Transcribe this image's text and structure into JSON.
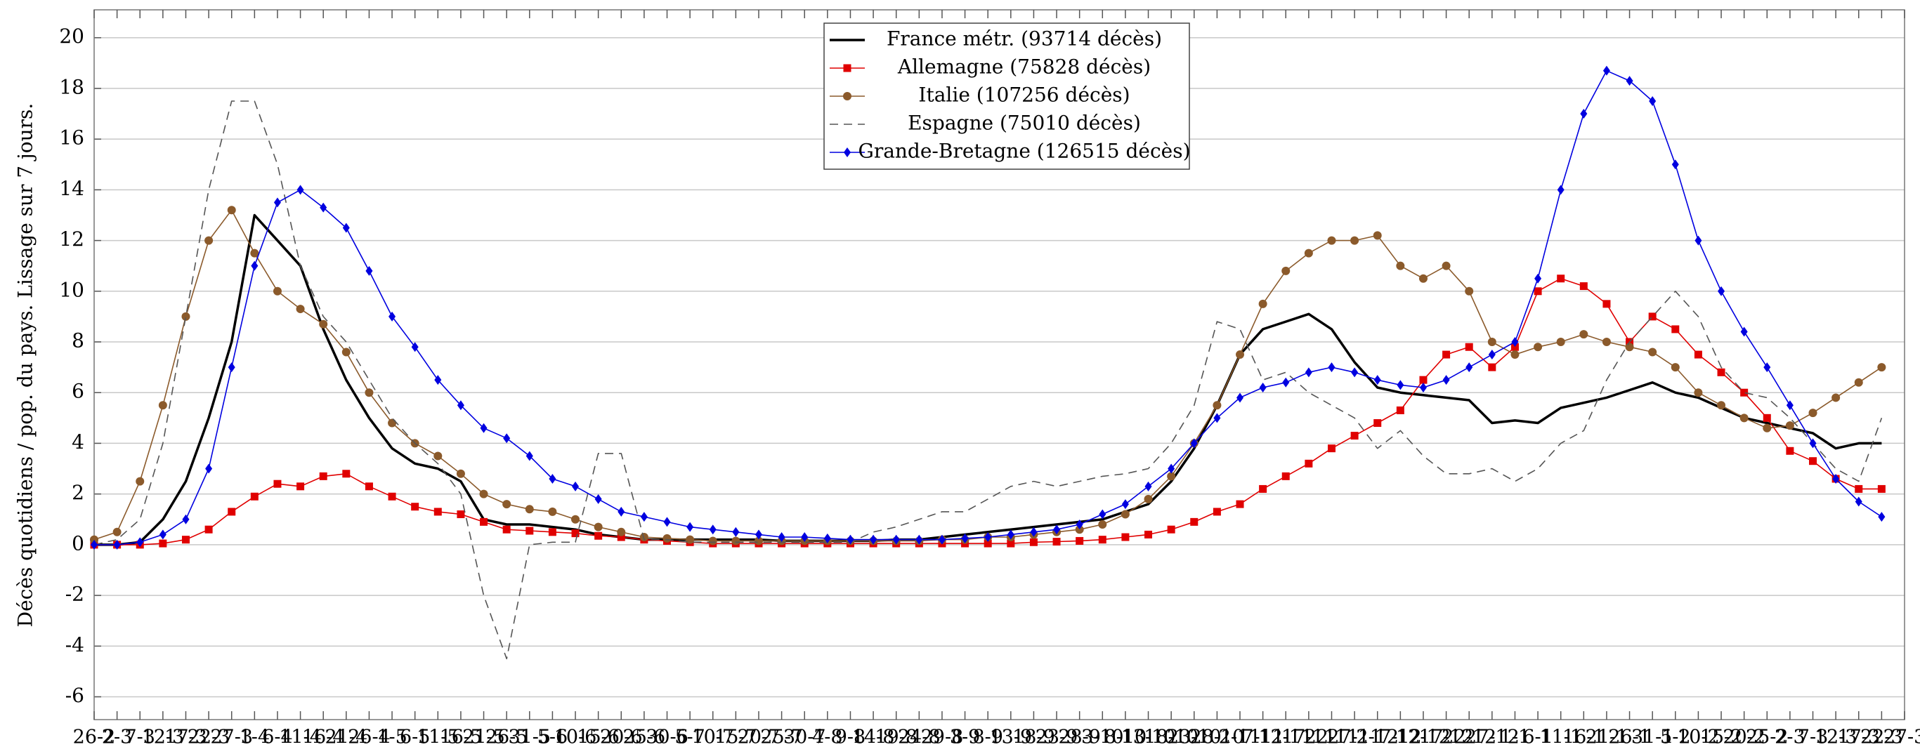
{
  "chart_data": {
    "type": "line",
    "y_label": "Décès quotidiens / pop. du pays. Lissage sur 7 jours.",
    "categories": [
      "26-2",
      "2-3",
      "7-3",
      "12-3",
      "17-3",
      "22-3",
      "27-3",
      "1-4",
      "6-4",
      "11-4",
      "16-4",
      "21-4",
      "26-4",
      "1-5",
      "6-5",
      "11-5",
      "16-5",
      "21-5",
      "26-5",
      "31-5",
      "5-6",
      "10-6",
      "15-6",
      "20-6",
      "25-6",
      "30-6",
      "5-7",
      "10-7",
      "15-7",
      "20-7",
      "25-7",
      "30-7",
      "4-8",
      "9-8",
      "14-8",
      "19-8",
      "24-8",
      "29-8",
      "3-9",
      "8-9",
      "13-9",
      "18-9",
      "23-9",
      "28-9",
      "3-10",
      "8-10",
      "13-10",
      "18-10",
      "23-10",
      "28-10",
      "2-11",
      "7-11",
      "12-11",
      "17-11",
      "22-11",
      "27-11",
      "2-12",
      "7-12",
      "12-12",
      "17-12",
      "22-12",
      "27-12",
      "1-1",
      "6-1",
      "11-1",
      "16-1",
      "21-1",
      "26-1",
      "31-1",
      "5-2",
      "10-2",
      "15-2",
      "20-2",
      "25-2",
      "2-3",
      "7-3",
      "12-3",
      "17-3",
      "22-3",
      "27-3"
    ],
    "ylim": [
      -6.9,
      21.1
    ],
    "yticks": [
      -6,
      -4,
      -2,
      0,
      2,
      4,
      6,
      8,
      10,
      12,
      14,
      16,
      18,
      20
    ],
    "grid": true,
    "legend": "top-center",
    "series": [
      {
        "name": "France métr. (93714 décès)",
        "color": "#000000",
        "marker": "none",
        "line_style": "solid",
        "values": [
          0,
          0,
          0.1,
          1.0,
          2.5,
          5,
          8,
          13,
          12,
          11,
          8.5,
          6.5,
          5,
          3.8,
          3.2,
          3,
          2.5,
          1.0,
          0.8,
          0.8,
          0.7,
          0.6,
          0.4,
          0.3,
          0.2,
          0.2,
          0.2,
          0.2,
          0.2,
          0.2,
          0.15,
          0.15,
          0.15,
          0.15,
          0.15,
          0.2,
          0.2,
          0.3,
          0.4,
          0.5,
          0.6,
          0.7,
          0.8,
          0.9,
          1.0,
          1.3,
          1.6,
          2.5,
          3.8,
          5.5,
          7.5,
          8.5,
          8.8,
          9.1,
          8.5,
          7.2,
          6.2,
          6.0,
          5.9,
          5.8,
          5.7,
          4.8,
          4.9,
          4.8,
          5.4,
          5.6,
          5.8,
          6.1,
          6.4,
          6.0,
          5.8,
          5.4,
          5.0,
          4.8,
          4.6,
          4.4,
          3.8,
          4.0,
          4.0,
          null
        ]
      },
      {
        "name": "Allemagne (75828 décès)",
        "color": "#e00000",
        "marker": "square",
        "line_style": "solid",
        "values": [
          0,
          0,
          0,
          0.05,
          0.2,
          0.6,
          1.3,
          1.9,
          2.4,
          2.3,
          2.7,
          2.8,
          2.3,
          1.9,
          1.5,
          1.3,
          1.2,
          0.9,
          0.6,
          0.55,
          0.5,
          0.45,
          0.35,
          0.3,
          0.2,
          0.15,
          0.1,
          0.05,
          0.05,
          0.05,
          0.05,
          0.05,
          0.05,
          0.05,
          0.05,
          0.05,
          0.05,
          0.05,
          0.05,
          0.05,
          0.05,
          0.1,
          0.12,
          0.15,
          0.2,
          0.3,
          0.4,
          0.6,
          0.9,
          1.3,
          1.6,
          2.2,
          2.7,
          3.2,
          3.8,
          4.3,
          4.8,
          5.3,
          6.5,
          7.5,
          7.8,
          7.0,
          7.8,
          10.0,
          10.5,
          10.2,
          9.5,
          8.0,
          9.0,
          8.5,
          7.5,
          6.8,
          6.0,
          5.0,
          3.7,
          3.3,
          2.6,
          2.2,
          2.2,
          null
        ]
      },
      {
        "name": "Italie (107256 décès)",
        "color": "#8b5a2b",
        "marker": "circle",
        "line_style": "solid",
        "values": [
          0.2,
          0.5,
          2.5,
          5.5,
          9.0,
          12.0,
          13.2,
          11.5,
          10,
          9.3,
          8.7,
          7.6,
          6.0,
          4.8,
          4.0,
          3.5,
          2.8,
          2.0,
          1.6,
          1.4,
          1.3,
          1.0,
          0.7,
          0.5,
          0.3,
          0.25,
          0.2,
          0.15,
          0.15,
          0.15,
          0.15,
          0.15,
          0.15,
          0.15,
          0.15,
          0.15,
          0.15,
          0.2,
          0.2,
          0.3,
          0.3,
          0.4,
          0.5,
          0.6,
          0.8,
          1.2,
          1.8,
          2.7,
          4.0,
          5.5,
          7.5,
          9.5,
          10.8,
          11.5,
          12.0,
          12.0,
          12.2,
          11.0,
          10.5,
          11.0,
          10.0,
          8.0,
          7.5,
          7.8,
          8.0,
          8.3,
          8.0,
          7.8,
          7.6,
          7.0,
          6.0,
          5.5,
          5.0,
          4.6,
          4.7,
          5.2,
          5.8,
          6.4,
          7.0,
          null
        ]
      },
      {
        "name": "Espagne (75010 décès)",
        "color": "#555555",
        "marker": "none",
        "line_style": "dashed",
        "values": [
          0,
          0.2,
          1.0,
          4.0,
          9.0,
          14.0,
          17.5,
          17.5,
          15.0,
          11.0,
          9.0,
          8.0,
          6.5,
          5.0,
          4.0,
          3.2,
          2.0,
          -2.0,
          -4.5,
          0.0,
          0.1,
          0.1,
          3.6,
          3.6,
          0.2,
          0.2,
          0.1,
          0.1,
          0.1,
          0.1,
          0.1,
          0.1,
          0.1,
          0.1,
          0.5,
          0.7,
          1.0,
          1.3,
          1.3,
          1.8,
          2.3,
          2.5,
          2.3,
          2.5,
          2.7,
          2.8,
          3.0,
          4.0,
          5.5,
          8.8,
          8.5,
          6.5,
          6.8,
          6.0,
          5.5,
          5.0,
          3.8,
          4.5,
          3.5,
          2.8,
          2.8,
          3.0,
          2.5,
          3.0,
          4.0,
          4.5,
          6.5,
          8.0,
          9.0,
          10.0,
          9.0,
          7.0,
          6.0,
          5.8,
          5.0,
          4.0,
          3.0,
          2.5,
          5.0,
          null
        ]
      },
      {
        "name": "Grande-Bretagne (126515 décès)",
        "color": "#0000e0",
        "marker": "diamond",
        "line_style": "solid",
        "values": [
          0,
          0,
          0.1,
          0.4,
          1.0,
          3.0,
          7.0,
          11.0,
          13.5,
          14.0,
          13.3,
          12.5,
          10.8,
          9.0,
          7.8,
          6.5,
          5.5,
          4.6,
          4.2,
          3.5,
          2.6,
          2.3,
          1.8,
          1.3,
          1.1,
          0.9,
          0.7,
          0.6,
          0.5,
          0.4,
          0.3,
          0.3,
          0.25,
          0.2,
          0.2,
          0.2,
          0.2,
          0.2,
          0.25,
          0.3,
          0.4,
          0.5,
          0.6,
          0.8,
          1.2,
          1.6,
          2.3,
          3.0,
          4.0,
          5.0,
          5.8,
          6.2,
          6.4,
          6.8,
          7.0,
          6.8,
          6.5,
          6.3,
          6.2,
          6.5,
          7.0,
          7.5,
          8.0,
          10.5,
          14.0,
          17.0,
          18.7,
          18.3,
          17.5,
          15.0,
          12.0,
          10.0,
          8.4,
          7.0,
          5.5,
          4.0,
          2.6,
          1.7,
          1.1,
          null
        ]
      }
    ]
  }
}
